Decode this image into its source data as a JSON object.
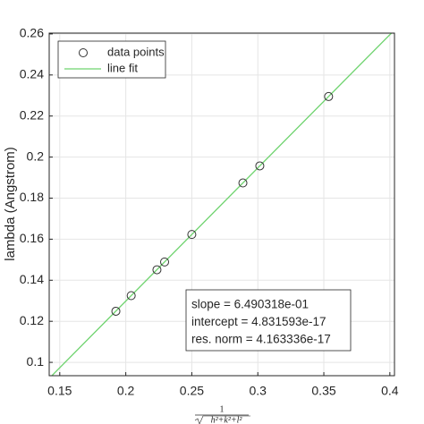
{
  "chart_data": {
    "type": "scatter",
    "x_label": {
      "numerator": "1",
      "denominator": "h²+k²+l²"
    },
    "y_label": "lambda (Angstrom)",
    "series": [
      {
        "name": "data points",
        "color": "#333333",
        "marker": "circle",
        "x": [
          0.1925,
          0.2041,
          0.2236,
          0.2294,
          0.25,
          0.2887,
          0.3015,
          0.3536
        ],
        "values": [
          0.1249,
          0.1325,
          0.1451,
          0.1489,
          0.1623,
          0.1874,
          0.1957,
          0.2295
        ]
      },
      {
        "name": "line fit",
        "color": "#6ed36e",
        "marker": "line",
        "x": [
          0.142,
          0.4035
        ],
        "values": [
          0.0922,
          0.2619
        ]
      }
    ],
    "xlim": [
      0.142,
      0.4035
    ],
    "ylim": [
      0.0935,
      0.2604
    ],
    "xticks": [
      0.15,
      0.2,
      0.25,
      0.3,
      0.35,
      0.4
    ],
    "yticks": [
      0.1,
      0.12,
      0.14,
      0.16,
      0.18,
      0.2,
      0.22,
      0.24,
      0.26
    ],
    "grid": true,
    "legend": "top-left",
    "annotation": [
      "slope = 6.490318e-01",
      "intercept = 4.831593e-17",
      "res. norm = 4.163336e-17"
    ]
  }
}
